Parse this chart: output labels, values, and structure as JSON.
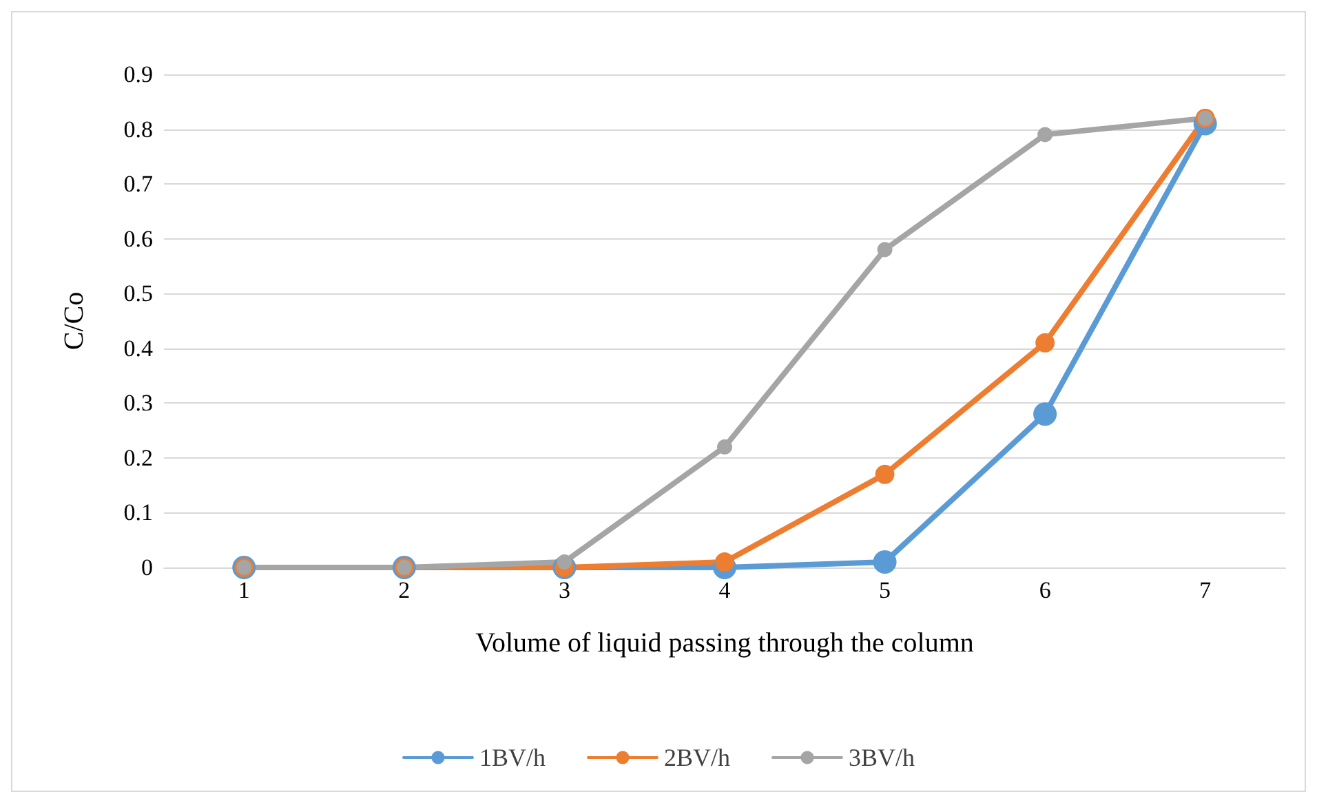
{
  "chart_data": {
    "type": "line",
    "xlabel": "Volume of liquid passing through the column",
    "ylabel": "C/Co",
    "categories": [
      "1",
      "2",
      "3",
      "4",
      "5",
      "6",
      "7"
    ],
    "series": [
      {
        "name": "1BV/h",
        "color": "#5b9bd5",
        "values": [
          0,
          0,
          0,
          0,
          0.01,
          0.28,
          0.81
        ]
      },
      {
        "name": "2BV/h",
        "color": "#ed7d31",
        "values": [
          0,
          0,
          0,
          0.01,
          0.17,
          0.41,
          0.82
        ]
      },
      {
        "name": "3BV/h",
        "color": "#a5a5a5",
        "values": [
          0,
          0,
          0.01,
          0.22,
          0.58,
          0.79,
          0.82
        ]
      }
    ],
    "ylim": [
      0,
      0.9
    ],
    "yticks": [
      0,
      0.1,
      0.2,
      0.3,
      0.4,
      0.5,
      0.6,
      0.7,
      0.8,
      0.9
    ],
    "grid": "y",
    "legend": "bottom",
    "marker": "circle",
    "line_style": "solid"
  }
}
